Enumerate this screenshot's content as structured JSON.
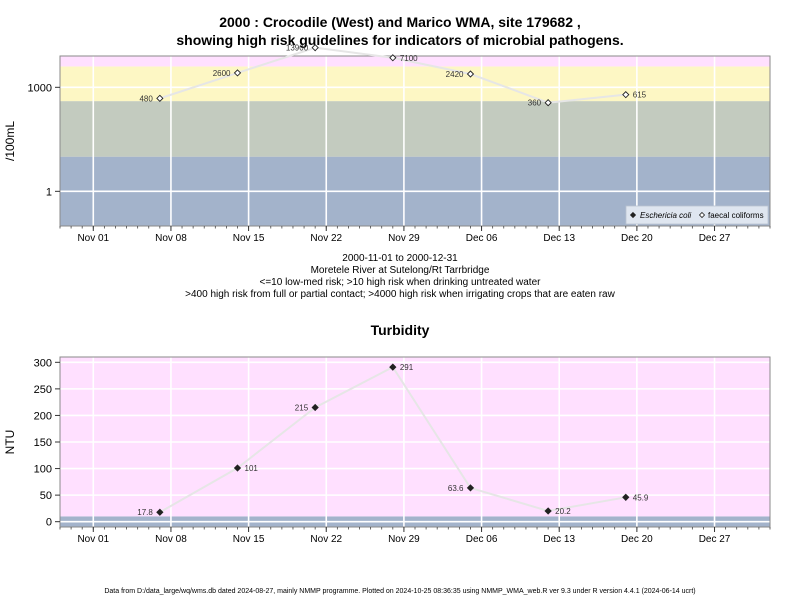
{
  "microbial": {
    "title_line1": "2000 : Crocodile (West) and Marico WMA, site 179682 ,",
    "title_line2": "showing high risk guidelines for indicators of microbial pathogens.",
    "caption": [
      "2000-11-01 to 2000-12-31",
      "Moretele River at Sutelong/Rt Tarrbridge",
      "<=10 low-med risk; >10 high risk when drinking untreated water",
      ">400 high risk from full or partial contact; >4000 high risk when irrigating crops that are eaten raw"
    ]
  },
  "turbidity": {
    "title": "Turbidity"
  },
  "footer": "Data from D:/data_large/wq/wms.db dated 2024-08-27, mainly NMMP programme. Plotted on 2024-10-25 08:36:35 using NMMP_WMA_web.R ver 9.3 under R version 4.4.1 (2024-06-14 ucrt)",
  "colors": {
    "pink": "#ffe0ff",
    "yellow": "#fdf7c4",
    "grey": "#c3cbbf",
    "blue": "#a3b3cb",
    "line": "#e6e6e6",
    "grid": "#ffffff",
    "marker_dark": "#222222"
  },
  "chart_data": [
    {
      "type": "line",
      "ylabel": "/100mL",
      "yscale": "log10",
      "ylim": [
        0.1,
        8000
      ],
      "yticks": [
        1,
        1000
      ],
      "ytick_labels": [
        "1",
        "1000"
      ],
      "xlim": [
        "2000-10-29",
        "2001-01-01"
      ],
      "xticks": [
        "2000-11-01",
        "2000-11-08",
        "2000-11-15",
        "2000-11-22",
        "2000-11-29",
        "2000-12-06",
        "2000-12-13",
        "2000-12-20",
        "2000-12-27"
      ],
      "xtick_labels": [
        "Nov 01",
        "Nov 08",
        "Nov 15",
        "Nov 22",
        "Nov 29",
        "Dec 06",
        "Dec 13",
        "Dec 20",
        "Dec 27"
      ],
      "bands": [
        {
          "from": 0.1,
          "to": 10,
          "color": "blue"
        },
        {
          "from": 10,
          "to": 400,
          "color": "grey"
        },
        {
          "from": 400,
          "to": 4000,
          "color": "yellow"
        },
        {
          "from": 4000,
          "to": 8000,
          "color": "pink"
        }
      ],
      "legend": {
        "placement": "bottom-right",
        "entries": [
          "Eschericia coli",
          "faecal coliforms"
        ]
      },
      "series": [
        {
          "name": "faecal coliforms",
          "marker": "open-diamond",
          "x": [
            "2000-11-07",
            "2000-11-14",
            "2000-11-21",
            "2000-11-28",
            "2000-12-05",
            "2000-12-12",
            "2000-12-19"
          ],
          "values": [
            480,
            2600,
            13900,
            7100,
            2420,
            360,
            615
          ],
          "labels": [
            "480",
            "2600",
            "13900",
            "7100",
            "2420",
            "360",
            "615"
          ],
          "label_side": [
            "left",
            "left",
            "left",
            "right",
            "left",
            "left",
            "right"
          ]
        }
      ]
    },
    {
      "type": "line",
      "title": "Turbidity",
      "ylabel": "NTU",
      "ylim": [
        -10,
        310
      ],
      "yticks": [
        0,
        50,
        100,
        150,
        200,
        250,
        300
      ],
      "ytick_labels": [
        "0",
        "50",
        "100",
        "150",
        "200",
        "250",
        "300"
      ],
      "xlim": [
        "2000-10-29",
        "2001-01-01"
      ],
      "xticks": [
        "2000-11-01",
        "2000-11-08",
        "2000-11-15",
        "2000-11-22",
        "2000-11-29",
        "2000-12-06",
        "2000-12-13",
        "2000-12-20",
        "2000-12-27"
      ],
      "xtick_labels": [
        "Nov 01",
        "Nov 08",
        "Nov 15",
        "Nov 22",
        "Nov 29",
        "Dec 06",
        "Dec 13",
        "Dec 20",
        "Dec 27"
      ],
      "bands": [
        {
          "from": -10,
          "to": 10,
          "color": "blue"
        },
        {
          "from": 10,
          "to": 310,
          "color": "pink"
        }
      ],
      "series": [
        {
          "marker": "filled-diamond",
          "x": [
            "2000-11-07",
            "2000-11-14",
            "2000-11-21",
            "2000-11-28",
            "2000-12-05",
            "2000-12-12",
            "2000-12-19"
          ],
          "values": [
            17.8,
            101,
            215,
            291,
            63.6,
            20.2,
            45.9
          ],
          "labels": [
            "17.8",
            "101",
            "215",
            "291",
            "63.6",
            "20.2",
            "45.9"
          ],
          "label_side": [
            "left",
            "right",
            "left",
            "right",
            "left",
            "right",
            "right"
          ]
        }
      ]
    }
  ]
}
